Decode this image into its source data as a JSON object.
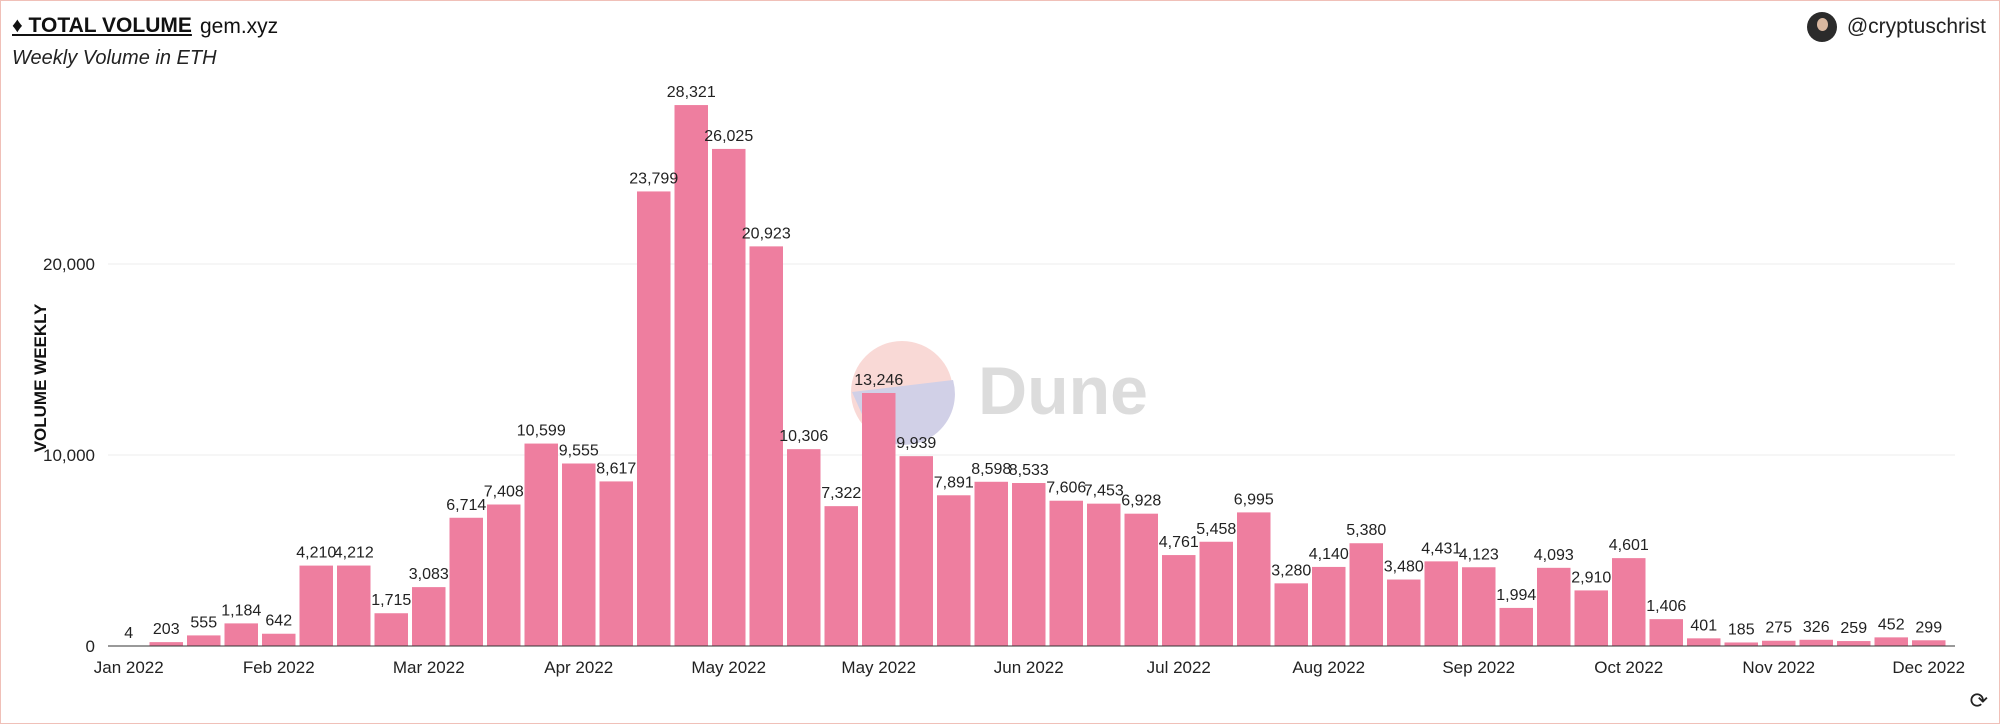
{
  "header": {
    "title": "♦ TOTAL VOLUME",
    "subtitle": "gem.xyz",
    "description": "Weekly Volume in ETH",
    "author": "@cryptuschrist",
    "watermark": "Dune",
    "refresh_icon": "refresh-icon"
  },
  "colors": {
    "bar": "#ee7e9f",
    "grid": "#eeeeee",
    "text": "#222222"
  },
  "chart_data": {
    "type": "bar",
    "title": "TOTAL VOLUME",
    "subtitle": "Weekly Volume in ETH",
    "xlabel": "",
    "ylabel": "VOLUME WEEKLY",
    "ylim": [
      0,
      30000
    ],
    "yticks": [
      0,
      10000,
      20000
    ],
    "ytick_labels": [
      "0",
      "10,000",
      "20,000"
    ],
    "xtick_labels": [
      "Jan 2022",
      "Feb 2022",
      "Mar 2022",
      "Apr 2022",
      "May 2022",
      "May 2022",
      "Jun 2022",
      "Jul 2022",
      "Aug 2022",
      "Sep 2022",
      "Oct 2022",
      "Nov 2022",
      "Dec 2022"
    ],
    "xtick_positions": [
      0,
      4,
      8,
      12,
      16,
      20,
      24,
      28,
      32,
      36,
      40,
      44,
      48
    ],
    "values": [
      4,
      203,
      555,
      1184,
      642,
      4210,
      4212,
      1715,
      3083,
      6714,
      7408,
      10599,
      9555,
      8617,
      23799,
      28321,
      26025,
      20923,
      10306,
      7322,
      13246,
      9939,
      7891,
      8598,
      8533,
      7606,
      7453,
      6928,
      4761,
      5458,
      6995,
      3280,
      4140,
      5380,
      3480,
      4431,
      4123,
      1994,
      4093,
      2910,
      4601,
      1406,
      401,
      185,
      275,
      326,
      259,
      452,
      299
    ],
    "value_labels": [
      "4",
      "203",
      "555",
      "1,184",
      "642",
      "4,210",
      "4,212",
      "1,715",
      "3,083",
      "6,714",
      "7,408",
      "10,599",
      "9,555",
      "8,617",
      "23,799",
      "28,321",
      "26,025",
      "20,923",
      "10,306",
      "7,322",
      "13,246",
      "9,939",
      "7,891",
      "8,598",
      "8,533",
      "7,606",
      "7,453",
      "6,928",
      "4,761",
      "5,458",
      "6,995",
      "3,280",
      "4,140",
      "5,380",
      "3,480",
      "4,431",
      "4,123",
      "1,994",
      "4,093",
      "2,910",
      "4,601",
      "1,406",
      "401",
      "185",
      "275",
      "326",
      "259",
      "452",
      "299"
    ],
    "grid": true
  }
}
